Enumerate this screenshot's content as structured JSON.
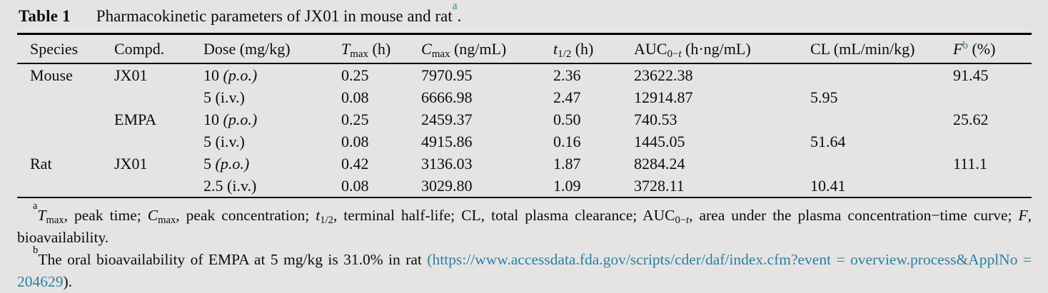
{
  "page": {
    "background_color": "#e5e4e2",
    "accent_color": "#2b7fa6",
    "text_color": "#0c0c0c"
  },
  "title": {
    "label": "Table 1",
    "caption": "Pharmacokinetic parameters of JX01 in mouse and rat",
    "footnote_mark": "a",
    "period": "."
  },
  "table": {
    "headers": {
      "species": "Species",
      "compd": "Compd.",
      "dose": "Dose (mg/kg)",
      "tmax": {
        "sym": "T",
        "sub": "max",
        "rest": " (h)"
      },
      "cmax": {
        "sym": "C",
        "sub": "max",
        "rest": " (ng/mL)"
      },
      "thalf": {
        "sym": "t",
        "sub": "1/2",
        "rest": " (h)"
      },
      "auc": {
        "sym": "AUC",
        "sub_pre": "0−",
        "sub_t": "t",
        "rest": " (h·ng/mL)"
      },
      "cl": "CL (mL/min/kg)",
      "f": {
        "sym": "F",
        "sup": "b",
        "rest": " (%)"
      }
    },
    "rows": [
      {
        "species": "Mouse",
        "compd": "JX01",
        "dose": "10",
        "route": "(p.o.)",
        "route_italic": true,
        "tmax": "0.25",
        "cmax": "7970.95",
        "thalf": "2.36",
        "auc": "23622.38",
        "cl": "",
        "f": "91.45"
      },
      {
        "species": "",
        "compd": "",
        "dose": "5",
        "route": "(i.v.)",
        "route_italic": false,
        "tmax": "0.08",
        "cmax": "6666.98",
        "thalf": "2.47",
        "auc": "12914.87",
        "cl": "5.95",
        "f": ""
      },
      {
        "species": "",
        "compd": "EMPA",
        "dose": "10",
        "route": "(p.o.)",
        "route_italic": true,
        "tmax": "0.25",
        "cmax": "2459.37",
        "thalf": "0.50",
        "auc": "740.53",
        "cl": "",
        "f": "25.62"
      },
      {
        "species": "",
        "compd": "",
        "dose": "5",
        "route": "(i.v.)",
        "route_italic": false,
        "tmax": "0.08",
        "cmax": "4915.86",
        "thalf": "0.16",
        "auc": "1445.05",
        "cl": "51.64",
        "f": ""
      },
      {
        "species": "Rat",
        "compd": "JX01",
        "dose": "5",
        "route": "(p.o.)",
        "route_italic": true,
        "tmax": "0.42",
        "cmax": "3136.03",
        "thalf": "1.87",
        "auc": "8284.24",
        "cl": "",
        "f": "111.1"
      },
      {
        "species": "",
        "compd": "",
        "dose": "2.5",
        "route": "(i.v.)",
        "route_italic": false,
        "tmax": "0.08",
        "cmax": "3029.80",
        "thalf": "1.09",
        "auc": "3728.11",
        "cl": "10.41",
        "f": ""
      }
    ]
  },
  "footnotes": {
    "a": {
      "mark": "a",
      "tmax_sym": "T",
      "tmax_sub": "max",
      "seg_peak_time": ", peak time; ",
      "cmax_sym": "C",
      "cmax_sub": "max",
      "seg_peak_conc": ", peak concentration; ",
      "thalf_sym": "t",
      "thalf_sub": "1/2",
      "seg_halflife": ", terminal half-life; CL, total plasma clearance; AUC",
      "auc_sub_pre": "0−",
      "auc_sub_t": "t",
      "seg_auc": ", area under the plasma concentration−time curve; ",
      "f_sym": "F",
      "seg_f": ", bioavailability."
    },
    "b": {
      "mark": "b",
      "text": "The oral bioavailability of EMPA at 5 mg/kg is 31.0% in rat ",
      "paren_open": "(",
      "url_line1": "https://www.accessdata.fda.gov/scripts/cder/daf/index.cfm?event = overview.",
      "url_line2": "process&ApplNo = 204629",
      "closing": ")."
    }
  }
}
